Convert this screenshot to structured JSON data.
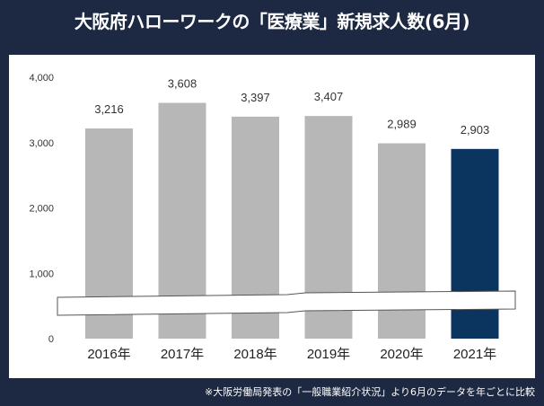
{
  "title": "大阪府ハローワークの「医療業」新規求人数(6月)",
  "footnote": "※大阪労働局発表の「一般職業紹介状況」より6月のデータを年ごとに比較",
  "chart_data": {
    "type": "bar",
    "title": "大阪府ハローワークの「医療業」新規求人数(6月)",
    "categories": [
      "2016年",
      "2017年",
      "2018年",
      "2019年",
      "2020年",
      "2021年"
    ],
    "values": [
      3216,
      3608,
      3397,
      3407,
      2989,
      2903
    ],
    "data_labels": [
      "3,216",
      "3,608",
      "3,397",
      "3,407",
      "2,989",
      "2,903"
    ],
    "ylim": [
      0,
      4000
    ],
    "yticks": [
      0,
      1000,
      2000,
      3000,
      4000
    ],
    "ytick_labels": [
      "0",
      "1,000",
      "2,000",
      "3,000",
      "4,000"
    ],
    "grid": false,
    "axis_break": true,
    "colors": {
      "default": "#b7b7b7",
      "highlight": "#0b355f"
    },
    "highlight_category": "2021年"
  }
}
